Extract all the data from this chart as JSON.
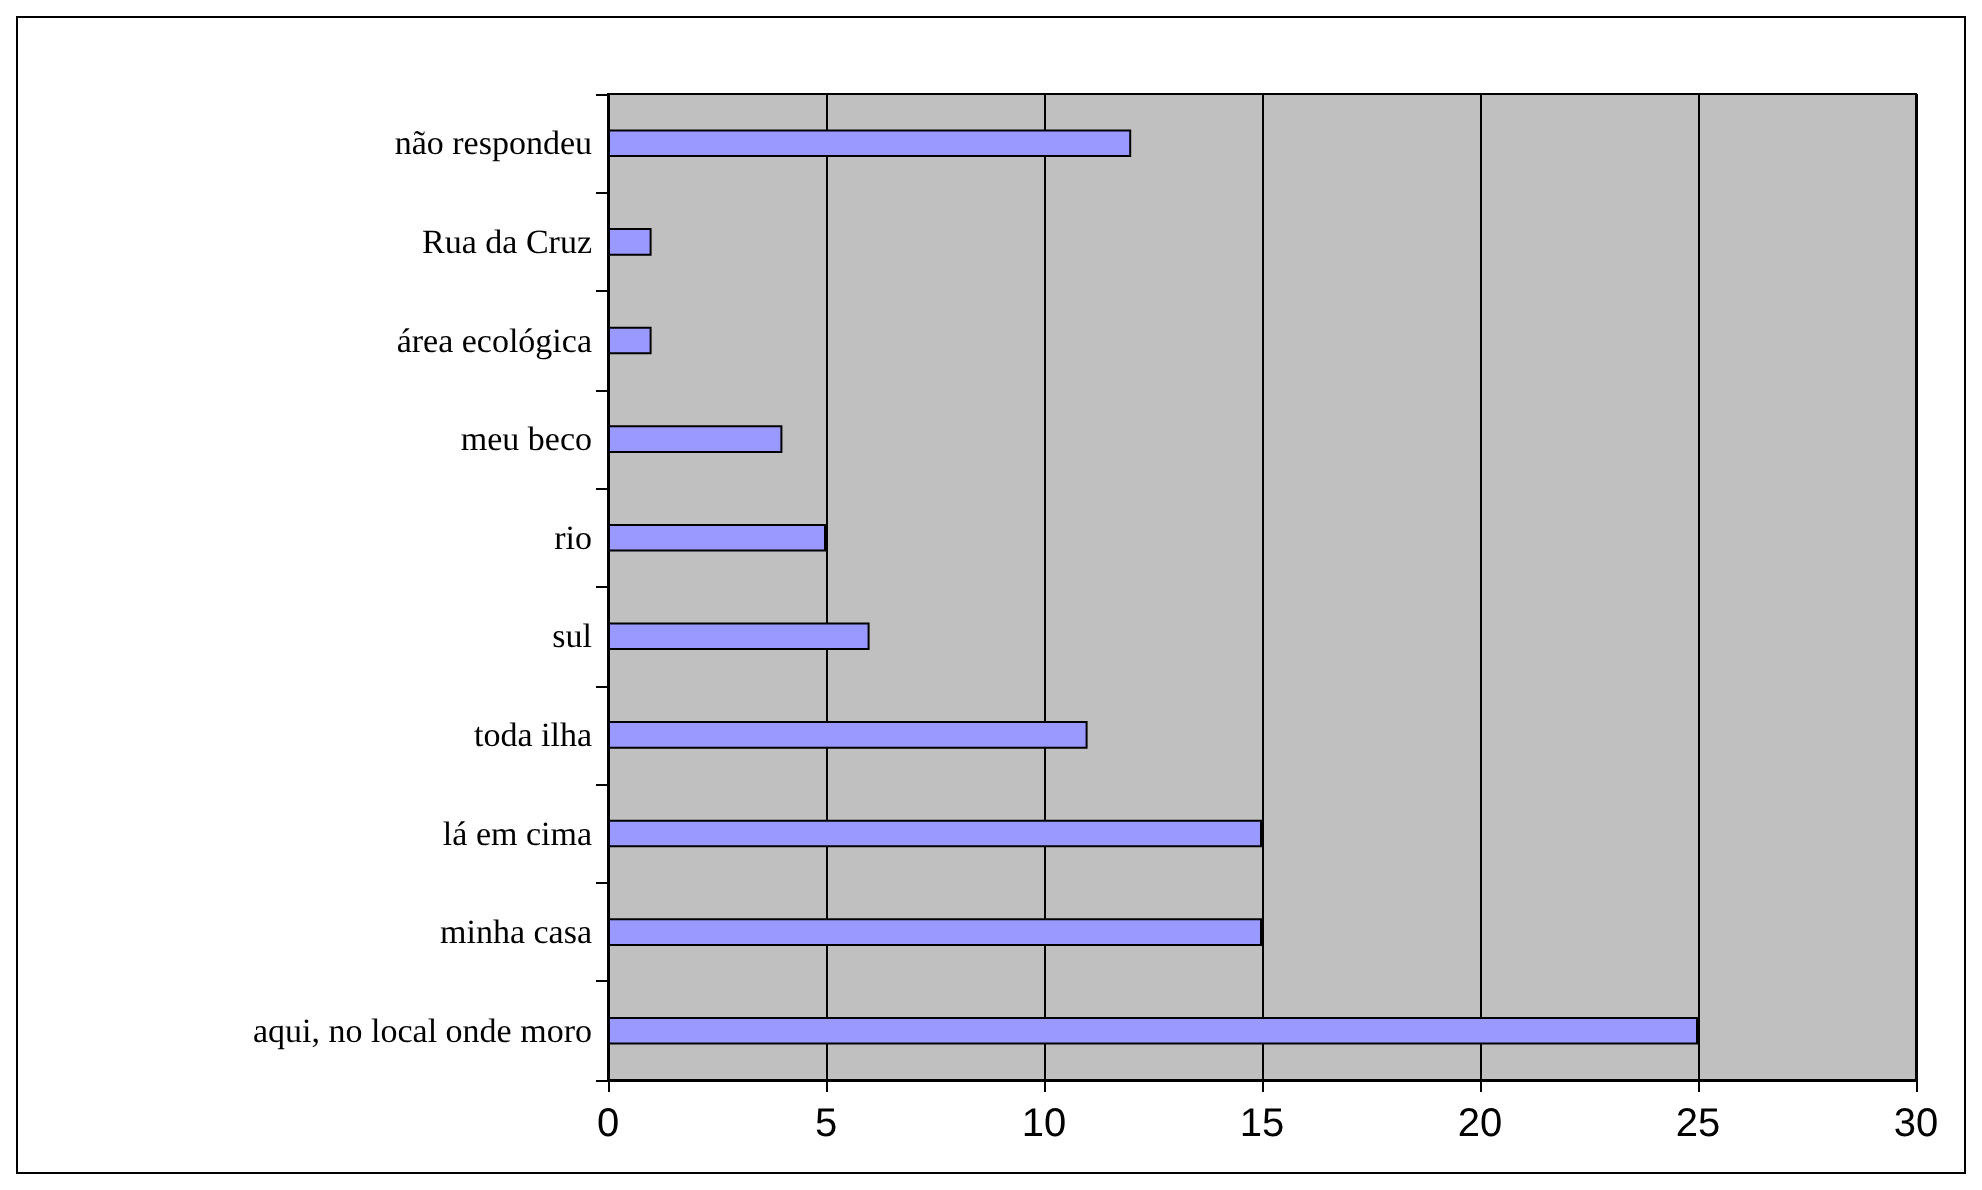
{
  "chart_data": {
    "type": "bar",
    "orientation": "horizontal",
    "categories": [
      "não respondeu",
      "Rua da Cruz",
      "área ecológica",
      "meu beco",
      "rio",
      "sul",
      "toda ilha",
      "lá em cima",
      "minha casa",
      "aqui, no local onde moro"
    ],
    "values": [
      12,
      1,
      1,
      4,
      5,
      6,
      11,
      15,
      15,
      25
    ],
    "color": "#9999ff",
    "xlim": [
      0,
      30
    ],
    "xticks": [
      0,
      5,
      10,
      15,
      20,
      25,
      30
    ],
    "grid": "x"
  }
}
